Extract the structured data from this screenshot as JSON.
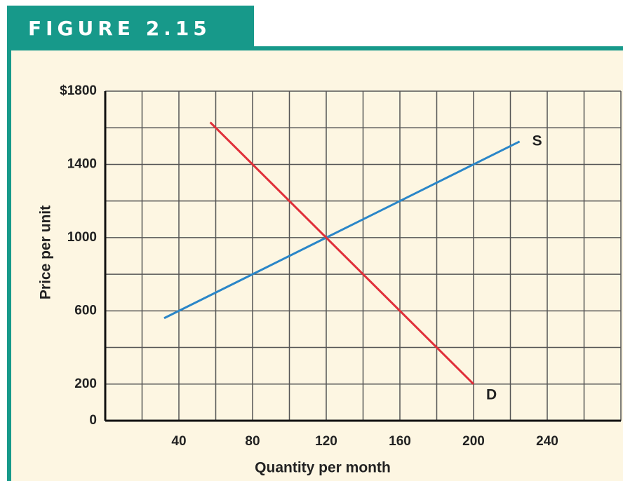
{
  "chart_data": {
    "type": "line",
    "title": "FIGURE 2.15",
    "x_label": "Quantity per month",
    "y_label": "Price per unit",
    "series": [
      {
        "name": "S",
        "color": "#2a86c8",
        "x": [
          32,
          80,
          120,
          160,
          200,
          225
        ],
        "values": [
          560,
          800,
          1000,
          1200,
          1400,
          1525
        ]
      },
      {
        "name": "D",
        "color": "#e0303a",
        "x": [
          57,
          80,
          120,
          160,
          200
        ],
        "values": [
          1630,
          1400,
          1000,
          600,
          200
        ]
      }
    ],
    "xlim": [
      0,
      280
    ],
    "ylim": [
      0,
      1800
    ],
    "xticks": [
      40,
      80,
      120,
      160,
      200,
      240
    ],
    "yticks": [
      0,
      200,
      600,
      1000,
      1400,
      {
        "value": 1800,
        "label": "$1800"
      }
    ],
    "xgrid": [
      0,
      20,
      40,
      60,
      80,
      100,
      120,
      140,
      160,
      180,
      200,
      220,
      240,
      260,
      280
    ],
    "ygrid": [
      0,
      200,
      400,
      600,
      800,
      1000,
      1200,
      1400,
      1600,
      1800
    ],
    "grid": true
  }
}
